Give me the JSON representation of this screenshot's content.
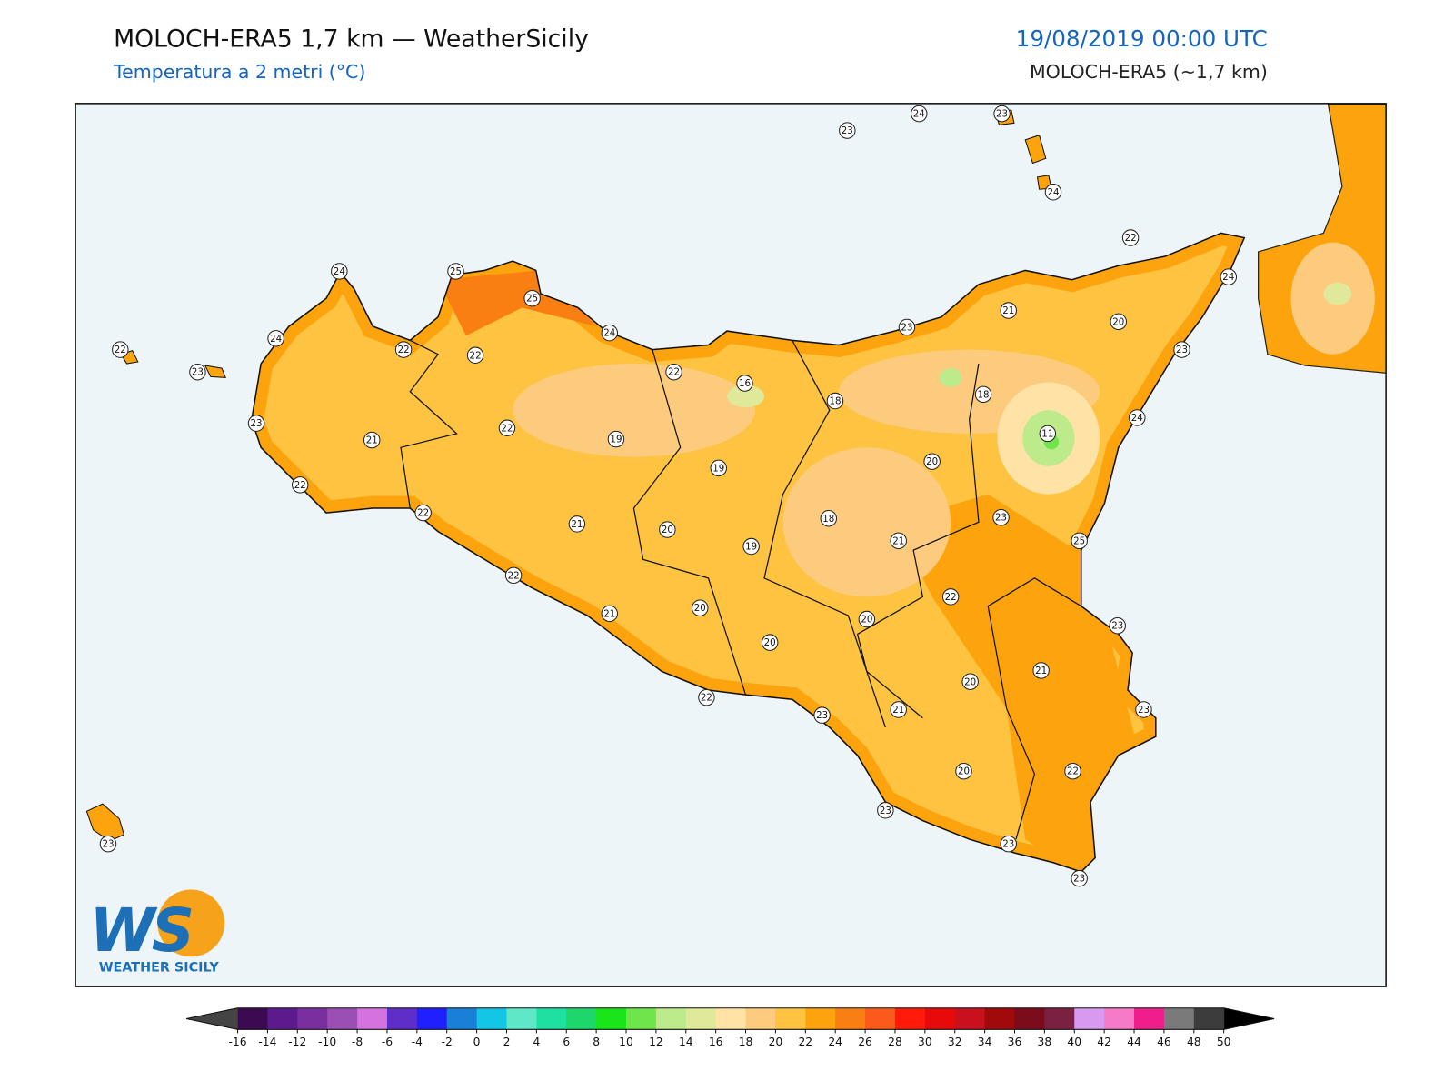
{
  "header": {
    "title": "MOLOCH-ERA5 1,7 km — WeatherSicily",
    "subtitle": "Temperatura a 2 metri (°C)",
    "datetime": "19/08/2019 00:00 UTC",
    "model": "MOLOCH-ERA5 (~1,7 km)"
  },
  "stations": [
    23,
    24,
    23,
    24,
    22,
    24,
    24,
    25,
    25,
    24,
    24,
    22,
    23,
    22,
    22,
    22,
    16,
    23,
    21,
    20,
    23,
    18,
    18,
    24,
    11,
    23,
    21,
    22,
    19,
    19,
    20,
    22,
    22,
    21,
    20,
    19,
    18,
    23,
    21,
    25,
    22,
    22,
    20,
    21,
    20,
    23,
    20,
    21,
    20,
    22,
    23,
    21,
    23,
    20,
    22,
    23,
    23,
    23,
    23
  ],
  "colorbar": {
    "ticks": [
      -16,
      -14,
      -12,
      -10,
      -8,
      -6,
      -4,
      -2,
      0,
      2,
      4,
      6,
      8,
      10,
      12,
      14,
      16,
      18,
      20,
      22,
      24,
      26,
      28,
      30,
      32,
      34,
      36,
      38,
      40,
      42,
      44,
      46,
      48,
      50
    ],
    "colors": [
      "#3b0a50",
      "#5d1a8c",
      "#7a2f9e",
      "#9b4fb5",
      "#d472e0",
      "#5f2ec8",
      "#1f1fff",
      "#1a7fd6",
      "#14c6e6",
      "#5fe8c8",
      "#1ee0a0",
      "#1ed66a",
      "#19e619",
      "#6ee64b",
      "#bdeb8c",
      "#e0e89a",
      "#ffe3a6",
      "#fdcb7e",
      "#fdc341",
      "#fca30d",
      "#fa7f12",
      "#fa5a1a",
      "#ff1a0a",
      "#e60a0a",
      "#c8101e",
      "#a00a0a",
      "#7a0c1c",
      "#7a2040",
      "#d89af0",
      "#f57ac8",
      "#f01e8c",
      "#7a7a7a",
      "#3c3c3c"
    ],
    "under_color": "#444444",
    "over_color": "#000000"
  },
  "logo": {
    "mark": "WS",
    "text": "WEATHER SICILY"
  }
}
